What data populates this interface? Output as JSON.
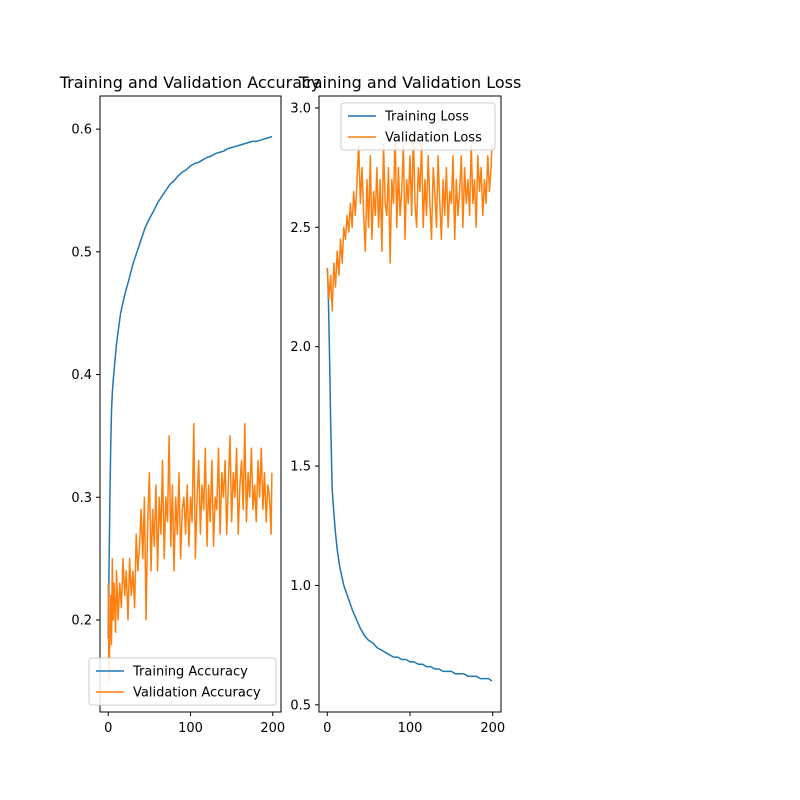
{
  "figure": {
    "background": "#ffffff"
  },
  "chart_data": [
    {
      "type": "line",
      "title": "Training and Validation Accuracy",
      "xlabel": "",
      "ylabel": "",
      "xlim": [
        -10,
        210
      ],
      "ylim": [
        0.125,
        0.627
      ],
      "xticks": [
        0,
        100,
        200
      ],
      "yticks": [
        0.2,
        0.3,
        0.4,
        0.5,
        0.6
      ],
      "xtick_labels": [
        "0",
        "100",
        "200"
      ],
      "ytick_labels": [
        "0.2",
        "0.3",
        "0.4",
        "0.5",
        "0.6"
      ],
      "grid": false,
      "legend": "lower-left",
      "series": [
        {
          "name": "Training Accuracy",
          "color": "#1f77b4",
          "x": [
            0,
            1,
            2,
            3,
            4,
            5,
            6,
            8,
            10,
            12,
            15,
            20,
            25,
            30,
            35,
            40,
            45,
            50,
            55,
            60,
            65,
            70,
            75,
            80,
            85,
            90,
            95,
            100,
            105,
            110,
            115,
            120,
            125,
            130,
            135,
            140,
            145,
            150,
            155,
            160,
            165,
            170,
            175,
            180,
            185,
            190,
            195,
            199
          ],
          "y": [
            0.185,
            0.24,
            0.3,
            0.34,
            0.37,
            0.385,
            0.395,
            0.41,
            0.425,
            0.435,
            0.45,
            0.465,
            0.477,
            0.49,
            0.5,
            0.51,
            0.52,
            0.527,
            0.533,
            0.54,
            0.545,
            0.55,
            0.555,
            0.558,
            0.562,
            0.565,
            0.567,
            0.57,
            0.572,
            0.573,
            0.575,
            0.577,
            0.578,
            0.58,
            0.581,
            0.582,
            0.584,
            0.585,
            0.586,
            0.587,
            0.588,
            0.589,
            0.59,
            0.59,
            0.591,
            0.592,
            0.593,
            0.594
          ]
        },
        {
          "name": "Validation Accuracy",
          "color": "#ff7f0e",
          "x": [
            0,
            1,
            2,
            3,
            4,
            5,
            6,
            7,
            8,
            9,
            10,
            12,
            14,
            16,
            18,
            20,
            22,
            24,
            26,
            28,
            30,
            32,
            34,
            36,
            38,
            40,
            42,
            44,
            46,
            48,
            50,
            52,
            54,
            56,
            58,
            60,
            62,
            64,
            66,
            68,
            70,
            72,
            74,
            76,
            78,
            80,
            82,
            84,
            86,
            88,
            90,
            92,
            94,
            96,
            98,
            100,
            102,
            104,
            106,
            108,
            110,
            112,
            114,
            116,
            118,
            120,
            122,
            124,
            126,
            128,
            130,
            132,
            134,
            136,
            138,
            140,
            142,
            144,
            146,
            148,
            150,
            152,
            154,
            156,
            158,
            160,
            162,
            164,
            166,
            168,
            170,
            172,
            174,
            176,
            178,
            180,
            182,
            184,
            186,
            188,
            190,
            192,
            194,
            196,
            198,
            199
          ],
          "y": [
            0.23,
            0.15,
            0.19,
            0.22,
            0.18,
            0.25,
            0.2,
            0.23,
            0.21,
            0.19,
            0.24,
            0.2,
            0.23,
            0.21,
            0.25,
            0.22,
            0.24,
            0.2,
            0.25,
            0.22,
            0.24,
            0.21,
            0.27,
            0.24,
            0.26,
            0.29,
            0.25,
            0.3,
            0.2,
            0.28,
            0.32,
            0.24,
            0.29,
            0.26,
            0.31,
            0.24,
            0.3,
            0.27,
            0.33,
            0.25,
            0.3,
            0.28,
            0.35,
            0.26,
            0.31,
            0.24,
            0.3,
            0.27,
            0.32,
            0.25,
            0.29,
            0.3,
            0.27,
            0.31,
            0.26,
            0.3,
            0.28,
            0.36,
            0.25,
            0.3,
            0.33,
            0.27,
            0.31,
            0.29,
            0.34,
            0.26,
            0.31,
            0.28,
            0.33,
            0.26,
            0.3,
            0.29,
            0.34,
            0.27,
            0.32,
            0.3,
            0.33,
            0.27,
            0.31,
            0.35,
            0.28,
            0.32,
            0.3,
            0.34,
            0.27,
            0.31,
            0.33,
            0.29,
            0.36,
            0.28,
            0.32,
            0.3,
            0.34,
            0.29,
            0.31,
            0.28,
            0.33,
            0.3,
            0.34,
            0.29,
            0.32,
            0.28,
            0.31,
            0.3,
            0.27,
            0.32
          ]
        }
      ]
    },
    {
      "type": "line",
      "title": "Training and Validation Loss",
      "xlabel": "",
      "ylabel": "",
      "xlim": [
        -10,
        210
      ],
      "ylim": [
        0.47,
        3.05
      ],
      "xticks": [
        0,
        100,
        200
      ],
      "yticks": [
        0.5,
        1.0,
        1.5,
        2.0,
        2.5,
        3.0
      ],
      "xtick_labels": [
        "0",
        "100",
        "200"
      ],
      "ytick_labels": [
        "0.5",
        "1.0",
        "1.5",
        "2.0",
        "2.5",
        "3.0"
      ],
      "grid": false,
      "legend": "upper-right",
      "series": [
        {
          "name": "Training Loss",
          "color": "#1f77b4",
          "x": [
            0,
            1,
            2,
            3,
            4,
            5,
            6,
            8,
            10,
            12,
            15,
            20,
            25,
            30,
            35,
            40,
            45,
            50,
            55,
            60,
            65,
            70,
            75,
            80,
            85,
            90,
            95,
            100,
            105,
            110,
            115,
            120,
            125,
            130,
            135,
            140,
            145,
            150,
            155,
            160,
            165,
            170,
            175,
            180,
            185,
            190,
            195,
            199
          ],
          "y": [
            2.33,
            2.25,
            2.1,
            1.9,
            1.7,
            1.55,
            1.4,
            1.3,
            1.22,
            1.15,
            1.08,
            1.0,
            0.95,
            0.9,
            0.86,
            0.82,
            0.79,
            0.77,
            0.76,
            0.74,
            0.73,
            0.72,
            0.71,
            0.7,
            0.7,
            0.69,
            0.69,
            0.68,
            0.68,
            0.67,
            0.67,
            0.66,
            0.66,
            0.65,
            0.65,
            0.64,
            0.64,
            0.64,
            0.63,
            0.63,
            0.63,
            0.62,
            0.62,
            0.62,
            0.61,
            0.61,
            0.61,
            0.6
          ]
        },
        {
          "name": "Validation Loss",
          "color": "#ff7f0e",
          "x": [
            0,
            2,
            4,
            6,
            8,
            10,
            12,
            14,
            16,
            18,
            20,
            22,
            24,
            26,
            28,
            30,
            32,
            34,
            36,
            38,
            40,
            42,
            44,
            46,
            48,
            50,
            52,
            54,
            56,
            58,
            60,
            62,
            64,
            66,
            68,
            70,
            72,
            74,
            76,
            78,
            80,
            82,
            84,
            86,
            88,
            90,
            92,
            94,
            96,
            98,
            100,
            102,
            104,
            106,
            108,
            110,
            112,
            114,
            116,
            118,
            120,
            122,
            124,
            126,
            128,
            130,
            132,
            134,
            136,
            138,
            140,
            142,
            144,
            146,
            148,
            150,
            152,
            154,
            156,
            158,
            160,
            162,
            164,
            166,
            168,
            170,
            172,
            174,
            176,
            178,
            180,
            182,
            184,
            186,
            188,
            190,
            192,
            194,
            196,
            198,
            199
          ],
          "y": [
            2.33,
            2.2,
            2.3,
            2.15,
            2.35,
            2.25,
            2.4,
            2.3,
            2.45,
            2.35,
            2.5,
            2.45,
            2.55,
            2.48,
            2.6,
            2.5,
            2.65,
            2.55,
            2.7,
            2.85,
            2.6,
            2.75,
            2.55,
            2.4,
            2.7,
            2.5,
            2.8,
            2.45,
            2.65,
            2.55,
            2.75,
            2.5,
            2.7,
            2.4,
            2.85,
            2.6,
            2.55,
            2.75,
            2.35,
            2.7,
            2.6,
            2.9,
            2.5,
            2.75,
            2.55,
            2.65,
            2.85,
            2.45,
            2.7,
            2.6,
            2.8,
            2.55,
            2.9,
            2.6,
            2.5,
            2.75,
            2.65,
            2.85,
            2.5,
            2.7,
            2.55,
            2.8,
            2.6,
            2.45,
            2.75,
            2.65,
            2.5,
            2.8,
            2.6,
            2.45,
            2.7,
            2.55,
            2.75,
            2.5,
            2.65,
            2.6,
            2.8,
            2.45,
            2.7,
            2.55,
            2.65,
            2.8,
            2.5,
            2.75,
            2.6,
            2.7,
            2.55,
            2.85,
            2.6,
            2.7,
            2.5,
            2.8,
            2.65,
            2.75,
            2.55,
            2.7,
            2.6,
            2.8,
            2.65,
            2.75,
            2.85
          ]
        }
      ]
    }
  ]
}
